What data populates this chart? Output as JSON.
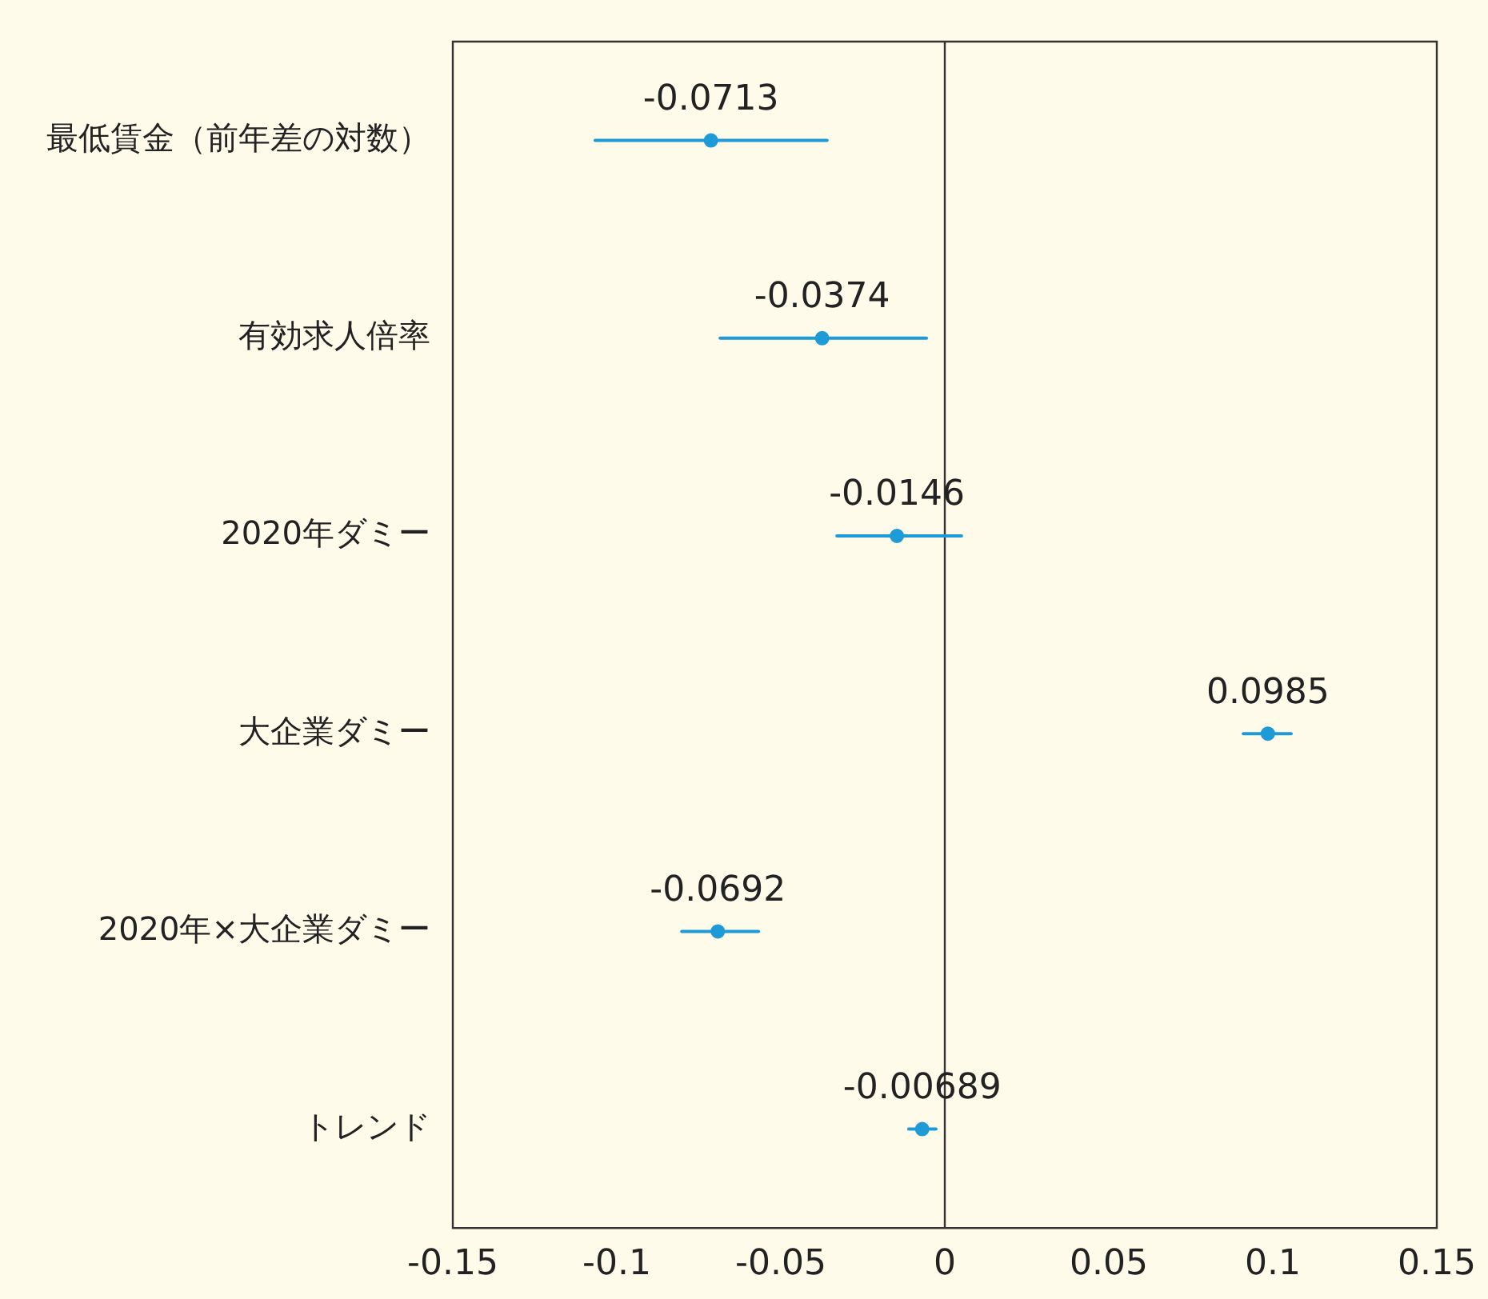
{
  "chart_data": {
    "type": "scatter",
    "orientation": "horizontal",
    "categories": [
      "最低賃金（前年差の対数）",
      "有効求人倍率",
      "2020年ダミー",
      "大企業ダミー",
      "2020年×大企業ダミー",
      "トレンド"
    ],
    "values": [
      -0.0713,
      -0.0374,
      -0.0146,
      0.0985,
      -0.0692,
      -0.00689
    ],
    "errors": [
      [
        -0.1066,
        -0.0359
      ],
      [
        -0.0685,
        -0.0056
      ],
      [
        -0.0329,
        0.0051
      ],
      [
        0.091,
        0.1056
      ],
      [
        -0.0802,
        -0.0568
      ],
      [
        -0.011,
        -0.0027
      ]
    ],
    "color": "#1e9bd7",
    "marker": "circle",
    "data_labels": true,
    "grid": false,
    "xlim": [
      -0.15,
      0.15
    ],
    "xticks": [
      -0.15,
      -0.1,
      -0.05,
      0,
      0.05,
      0.1,
      0.15
    ],
    "ref_lines": [
      {
        "axis": "x",
        "value": 0,
        "color": "#333333"
      }
    ]
  }
}
